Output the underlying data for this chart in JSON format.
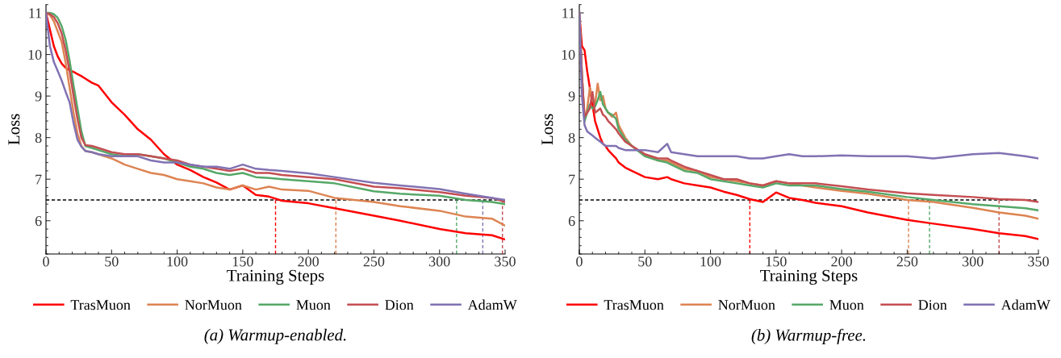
{
  "chart_data": [
    {
      "type": "line",
      "xlabel": "Training Steps",
      "ylabel": "Loss",
      "xlim": [
        0,
        350
      ],
      "ylim": [
        5.2,
        11.2
      ],
      "xticks": [
        0,
        50,
        100,
        150,
        200,
        250,
        300,
        350
      ],
      "yticks": [
        6,
        7,
        8,
        9,
        10,
        11
      ],
      "grid": false,
      "legend": "bottom",
      "line_style": "solid",
      "marker": "none",
      "x": [
        0,
        3,
        6,
        9,
        12,
        15,
        18,
        21,
        24,
        27,
        30,
        35,
        40,
        50,
        60,
        70,
        80,
        90,
        100,
        110,
        120,
        130,
        140,
        150,
        160,
        170,
        180,
        200,
        220,
        250,
        270,
        300,
        320,
        340,
        350
      ],
      "series": [
        {
          "name": "TrasMuon",
          "color": "#ff0000",
          "values": [
            11.0,
            10.6,
            10.2,
            9.95,
            9.78,
            9.68,
            9.62,
            9.58,
            9.53,
            9.48,
            9.42,
            9.32,
            9.25,
            8.85,
            8.55,
            8.2,
            7.95,
            7.6,
            7.35,
            7.22,
            7.05,
            6.92,
            6.75,
            6.85,
            6.62,
            6.58,
            6.48,
            6.42,
            6.3,
            6.12,
            6.0,
            5.8,
            5.7,
            5.65,
            5.55
          ]
        },
        {
          "name": "NorMuon",
          "color": "#dd8452",
          "values": [
            11.0,
            10.95,
            10.8,
            10.55,
            10.3,
            9.8,
            9.2,
            8.6,
            8.1,
            7.8,
            7.68,
            7.65,
            7.6,
            7.5,
            7.35,
            7.25,
            7.15,
            7.1,
            7.0,
            6.95,
            6.9,
            6.8,
            6.75,
            6.85,
            6.75,
            6.82,
            6.75,
            6.72,
            6.55,
            6.45,
            6.35,
            6.24,
            6.1,
            6.05,
            5.88
          ]
        },
        {
          "name": "Muon",
          "color": "#55a868",
          "values": [
            11.0,
            11.0,
            10.97,
            10.88,
            10.68,
            10.35,
            9.85,
            9.25,
            8.7,
            8.15,
            7.8,
            7.75,
            7.7,
            7.6,
            7.55,
            7.6,
            7.55,
            7.5,
            7.4,
            7.3,
            7.25,
            7.15,
            7.1,
            7.15,
            7.05,
            7.03,
            7.0,
            6.95,
            6.9,
            6.71,
            6.65,
            6.6,
            6.5,
            6.45,
            6.4
          ]
        },
        {
          "name": "Dion",
          "color": "#c44e52",
          "values": [
            11.0,
            10.97,
            10.9,
            10.75,
            10.5,
            10.1,
            9.6,
            9.0,
            8.45,
            8.0,
            7.82,
            7.8,
            7.75,
            7.65,
            7.6,
            7.6,
            7.55,
            7.5,
            7.45,
            7.35,
            7.3,
            7.25,
            7.2,
            7.25,
            7.15,
            7.15,
            7.1,
            7.05,
            7.0,
            6.82,
            6.78,
            6.69,
            6.6,
            6.55,
            6.45
          ]
        },
        {
          "name": "AdamW",
          "color": "#8172b3",
          "values": [
            11.0,
            10.2,
            9.82,
            9.6,
            9.37,
            9.1,
            8.85,
            8.35,
            7.95,
            7.78,
            7.68,
            7.65,
            7.6,
            7.55,
            7.55,
            7.55,
            7.45,
            7.4,
            7.4,
            7.35,
            7.3,
            7.3,
            7.25,
            7.35,
            7.25,
            7.22,
            7.2,
            7.14,
            7.05,
            6.91,
            6.85,
            6.76,
            6.65,
            6.55,
            6.5
          ]
        }
      ],
      "ref_lines": [
        {
          "axis": "y",
          "value": 6.5,
          "color": "#000000",
          "line_style": "dashed"
        },
        {
          "axis": "x",
          "value": 175,
          "color": "#ff0000",
          "line_style": "dashed"
        },
        {
          "axis": "x",
          "value": 221,
          "color": "#dd8452",
          "line_style": "dashed"
        },
        {
          "axis": "x",
          "value": 313,
          "color": "#55a868",
          "line_style": "dashed"
        },
        {
          "axis": "x",
          "value": 333,
          "color": "#8172b3",
          "line_style": "dashed"
        },
        {
          "axis": "x",
          "value": 348,
          "color": "#c44e52",
          "line_style": "dashed"
        }
      ],
      "annotations": [
        "(a) Warmup-enabled."
      ]
    },
    {
      "type": "line",
      "xlabel": "Training Steps",
      "ylabel": "Loss",
      "xlim": [
        0,
        350
      ],
      "ylim": [
        5.2,
        11.2
      ],
      "xticks": [
        0,
        50,
        100,
        150,
        200,
        250,
        300,
        350
      ],
      "yticks": [
        6,
        7,
        8,
        9,
        10,
        11
      ],
      "grid": false,
      "legend": "bottom",
      "line_style": "solid",
      "marker": "none",
      "x": [
        0,
        2,
        4,
        6,
        8,
        10,
        12,
        14,
        16,
        18,
        20,
        22,
        25,
        28,
        30,
        35,
        40,
        50,
        60,
        67,
        70,
        80,
        90,
        100,
        110,
        120,
        130,
        140,
        150,
        160,
        170,
        180,
        200,
        220,
        250,
        270,
        300,
        320,
        340,
        350
      ],
      "series": [
        {
          "name": "TrasMuon",
          "color": "#ff0000",
          "values": [
            11,
            10.2,
            10.1,
            9.6,
            9.2,
            8.8,
            8.4,
            8.2,
            8.0,
            7.85,
            7.8,
            7.7,
            7.6,
            7.5,
            7.4,
            7.28,
            7.2,
            7.05,
            7.0,
            7.05,
            7.0,
            6.9,
            6.85,
            6.8,
            6.7,
            6.62,
            6.52,
            6.45,
            6.68,
            6.55,
            6.5,
            6.43,
            6.35,
            6.2,
            6.02,
            5.93,
            5.8,
            5.7,
            5.63,
            5.56
          ]
        },
        {
          "name": "NorMuon",
          "color": "#dd8452",
          "values": [
            11,
            9.5,
            8.4,
            8.7,
            9.2,
            8.9,
            8.8,
            9.3,
            8.9,
            9.0,
            8.7,
            8.6,
            8.5,
            8.6,
            8.3,
            8.0,
            7.8,
            7.6,
            7.45,
            7.45,
            7.4,
            7.25,
            7.2,
            7.05,
            7.0,
            6.95,
            6.9,
            6.85,
            6.95,
            6.9,
            6.85,
            6.8,
            6.72,
            6.65,
            6.5,
            6.45,
            6.31,
            6.2,
            6.12,
            6.05
          ]
        },
        {
          "name": "Muon",
          "color": "#55a868",
          "values": [
            11,
            9.5,
            8.4,
            8.6,
            8.8,
            8.7,
            8.75,
            8.9,
            9.1,
            8.8,
            8.7,
            8.6,
            8.55,
            8.45,
            8.2,
            7.95,
            7.8,
            7.55,
            7.45,
            7.4,
            7.35,
            7.2,
            7.15,
            7.0,
            6.95,
            6.9,
            6.85,
            6.8,
            6.9,
            6.85,
            6.85,
            6.85,
            6.76,
            6.7,
            6.57,
            6.5,
            6.4,
            6.35,
            6.3,
            6.25
          ]
        },
        {
          "name": "Dion",
          "color": "#c44e52",
          "values": [
            11,
            9.5,
            8.5,
            8.6,
            8.7,
            9.1,
            8.6,
            8.65,
            8.7,
            8.55,
            8.5,
            8.4,
            8.3,
            8.2,
            8.1,
            7.9,
            7.8,
            7.6,
            7.5,
            7.5,
            7.45,
            7.3,
            7.2,
            7.1,
            7.0,
            7.0,
            6.9,
            6.85,
            6.95,
            6.9,
            6.9,
            6.9,
            6.83,
            6.75,
            6.66,
            6.62,
            6.57,
            6.52,
            6.5,
            6.45
          ]
        },
        {
          "name": "AdamW",
          "color": "#8172b3",
          "values": [
            11,
            9.0,
            8.3,
            8.15,
            8.1,
            8.05,
            8.0,
            7.95,
            7.9,
            7.85,
            7.8,
            7.8,
            7.8,
            7.8,
            7.75,
            7.7,
            7.7,
            7.7,
            7.65,
            7.85,
            7.65,
            7.6,
            7.55,
            7.55,
            7.55,
            7.55,
            7.5,
            7.5,
            7.55,
            7.6,
            7.55,
            7.55,
            7.57,
            7.55,
            7.55,
            7.5,
            7.6,
            7.63,
            7.55,
            7.5
          ]
        }
      ],
      "ref_lines": [
        {
          "axis": "y",
          "value": 6.5,
          "color": "#000000",
          "line_style": "dashed"
        },
        {
          "axis": "x",
          "value": 130,
          "color": "#ff0000",
          "line_style": "dashed"
        },
        {
          "axis": "x",
          "value": 251,
          "color": "#dd8452",
          "line_style": "dashed"
        },
        {
          "axis": "x",
          "value": 267,
          "color": "#55a868",
          "line_style": "dashed"
        },
        {
          "axis": "x",
          "value": 320,
          "color": "#c44e52",
          "line_style": "dashed"
        }
      ],
      "annotations": [
        "(b) Warmup-free."
      ]
    }
  ]
}
